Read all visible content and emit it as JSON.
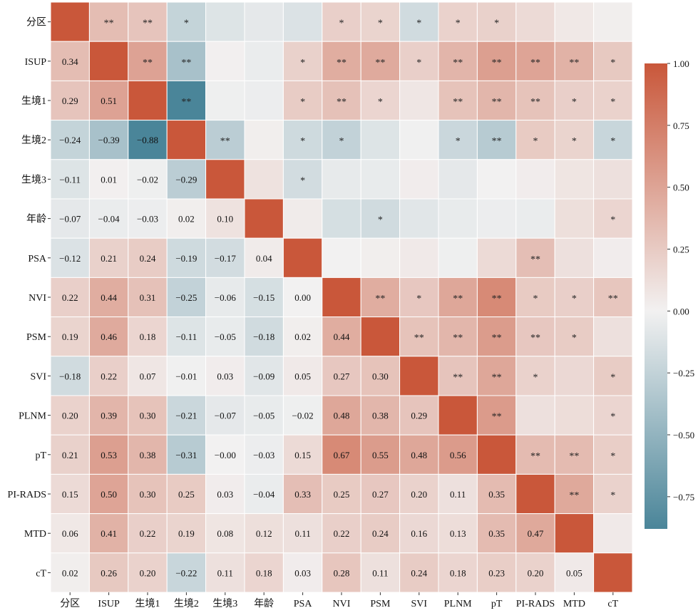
{
  "chart_data": {
    "type": "heatmap",
    "title": "",
    "labels": [
      "分区",
      "ISUP",
      "生境1",
      "生境2",
      "生境3",
      "年龄",
      "PSA",
      "NVI",
      "PSM",
      "SVI",
      "PLNM",
      "pT",
      "PI-RADS",
      "MTD",
      "cT"
    ],
    "lower_values": [
      [],
      [
        0.34
      ],
      [
        0.29,
        0.51
      ],
      [
        -0.24,
        -0.39,
        -0.88
      ],
      [
        -0.11,
        0.01,
        -0.02,
        -0.29
      ],
      [
        -0.07,
        -0.04,
        -0.03,
        0.02,
        0.1
      ],
      [
        -0.12,
        0.21,
        0.24,
        -0.19,
        -0.17,
        0.04
      ],
      [
        0.22,
        0.44,
        0.31,
        -0.25,
        -0.06,
        -0.15,
        0.0
      ],
      [
        0.19,
        0.46,
        0.18,
        -0.11,
        -0.05,
        -0.18,
        0.02,
        0.44
      ],
      [
        -0.18,
        0.22,
        0.07,
        -0.01,
        0.03,
        -0.09,
        0.05,
        0.27,
        0.3
      ],
      [
        0.2,
        0.39,
        0.3,
        -0.21,
        -0.07,
        -0.05,
        -0.02,
        0.48,
        0.38,
        0.29
      ],
      [
        0.21,
        0.53,
        0.38,
        -0.31,
        -0.0,
        -0.03,
        0.15,
        0.67,
        0.55,
        0.48,
        0.56
      ],
      [
        0.15,
        0.5,
        0.3,
        0.25,
        0.03,
        -0.04,
        0.33,
        0.25,
        0.27,
        0.2,
        0.11,
        0.35
      ],
      [
        0.06,
        0.41,
        0.22,
        0.19,
        0.08,
        0.12,
        0.11,
        0.22,
        0.24,
        0.16,
        0.13,
        0.35,
        0.47
      ],
      [
        0.02,
        0.26,
        0.2,
        -0.22,
        0.11,
        0.18,
        0.03,
        0.28,
        0.11,
        0.24,
        0.18,
        0.23,
        0.2,
        0.05
      ]
    ],
    "lower_labels": [
      [],
      [
        "0.34"
      ],
      [
        "0.29",
        "0.51"
      ],
      [
        "−0.24",
        "−0.39",
        "−0.88"
      ],
      [
        "−0.11",
        "0.01",
        "−0.02",
        "−0.29"
      ],
      [
        "−0.07",
        "−0.04",
        "−0.03",
        "0.02",
        "0.10"
      ],
      [
        "−0.12",
        "0.21",
        "0.24",
        "−0.19",
        "−0.17",
        "0.04"
      ],
      [
        "0.22",
        "0.44",
        "0.31",
        "−0.25",
        "−0.06",
        "−0.15",
        "0.00"
      ],
      [
        "0.19",
        "0.46",
        "0.18",
        "−0.11",
        "−0.05",
        "−0.18",
        "0.02",
        "0.44"
      ],
      [
        "−0.18",
        "0.22",
        "0.07",
        "−0.01",
        "0.03",
        "−0.09",
        "0.05",
        "0.27",
        "0.30"
      ],
      [
        "0.20",
        "0.39",
        "0.30",
        "−0.21",
        "−0.07",
        "−0.05",
        "−0.02",
        "0.48",
        "0.38",
        "0.29"
      ],
      [
        "0.21",
        "0.53",
        "0.38",
        "−0.31",
        "−0.00",
        "−0.03",
        "0.15",
        "0.67",
        "0.55",
        "0.48",
        "0.56"
      ],
      [
        "0.15",
        "0.50",
        "0.30",
        "0.25",
        "0.03",
        "−0.04",
        "0.33",
        "0.25",
        "0.27",
        "0.20",
        "0.11",
        "0.35"
      ],
      [
        "0.06",
        "0.41",
        "0.22",
        "0.19",
        "0.08",
        "0.12",
        "0.11",
        "0.22",
        "0.24",
        "0.16",
        "0.13",
        "0.35",
        "0.47"
      ],
      [
        "0.02",
        "0.26",
        "0.20",
        "−0.22",
        "0.11",
        "0.18",
        "0.03",
        "0.28",
        "0.11",
        "0.24",
        "0.18",
        "0.23",
        "0.20",
        "0.05"
      ]
    ],
    "upper_stars": [
      [
        "",
        "**",
        "**",
        "*",
        "",
        "",
        "",
        "*",
        "*",
        "*",
        "*",
        "*",
        "",
        "",
        ""
      ],
      [
        "",
        "",
        "**",
        "**",
        "",
        "",
        "*",
        "**",
        "**",
        "*",
        "**",
        "**",
        "**",
        "**",
        "*"
      ],
      [
        "",
        "",
        "",
        "**",
        "",
        "",
        "*",
        "**",
        "*",
        "",
        "**",
        "**",
        "**",
        "*",
        "*"
      ],
      [
        "",
        "",
        "",
        "",
        "**",
        "",
        "*",
        "*",
        "",
        "",
        "*",
        "**",
        "*",
        "*",
        "*"
      ],
      [
        "",
        "",
        "",
        "",
        "",
        "",
        "*",
        "",
        "",
        "",
        "",
        "",
        "",
        "",
        ""
      ],
      [
        "",
        "",
        "",
        "",
        "",
        "",
        "",
        "",
        "*",
        "",
        "",
        "",
        "",
        "",
        "*"
      ],
      [
        "",
        "",
        "",
        "",
        "",
        "",
        "",
        "",
        "",
        "",
        "",
        "",
        "**",
        "",
        ""
      ],
      [
        "",
        "",
        "",
        "",
        "",
        "",
        "",
        "",
        "**",
        "*",
        "**",
        "**",
        "*",
        "*",
        "**"
      ],
      [
        "",
        "",
        "",
        "",
        "",
        "",
        "",
        "",
        "",
        "**",
        "**",
        "**",
        "**",
        "*",
        ""
      ],
      [
        "",
        "",
        "",
        "",
        "",
        "",
        "",
        "",
        "",
        "",
        "**",
        "**",
        "*",
        "",
        "*"
      ],
      [
        "",
        "",
        "",
        "",
        "",
        "",
        "",
        "",
        "",
        "",
        "",
        "**",
        "",
        "",
        "*"
      ],
      [
        "",
        "",
        "",
        "",
        "",
        "",
        "",
        "",
        "",
        "",
        "",
        "",
        "**",
        "**",
        "*"
      ],
      [
        "",
        "",
        "",
        "",
        "",
        "",
        "",
        "",
        "",
        "",
        "",
        "",
        "",
        "**",
        "*"
      ],
      [
        "",
        "",
        "",
        "",
        "",
        "",
        "",
        "",
        "",
        "",
        "",
        "",
        "",
        "",
        ""
      ],
      [
        "",
        "",
        "",
        "",
        "",
        "",
        "",
        "",
        "",
        "",
        "",
        "",
        "",
        "",
        ""
      ]
    ],
    "colorbar": {
      "range": [
        -0.88,
        1.0
      ],
      "ticks": [
        1.0,
        0.75,
        0.5,
        0.25,
        0.0,
        -0.25,
        -0.5,
        -0.75
      ],
      "tick_labels": [
        "1.00",
        "0.75",
        "0.50",
        "0.25",
        "0.00",
        "−0.25",
        "−0.50",
        "−0.75"
      ],
      "colors": {
        "negative": "#4a8599",
        "neutral": "#f2f1f1",
        "positive": "#c9573a"
      }
    }
  }
}
